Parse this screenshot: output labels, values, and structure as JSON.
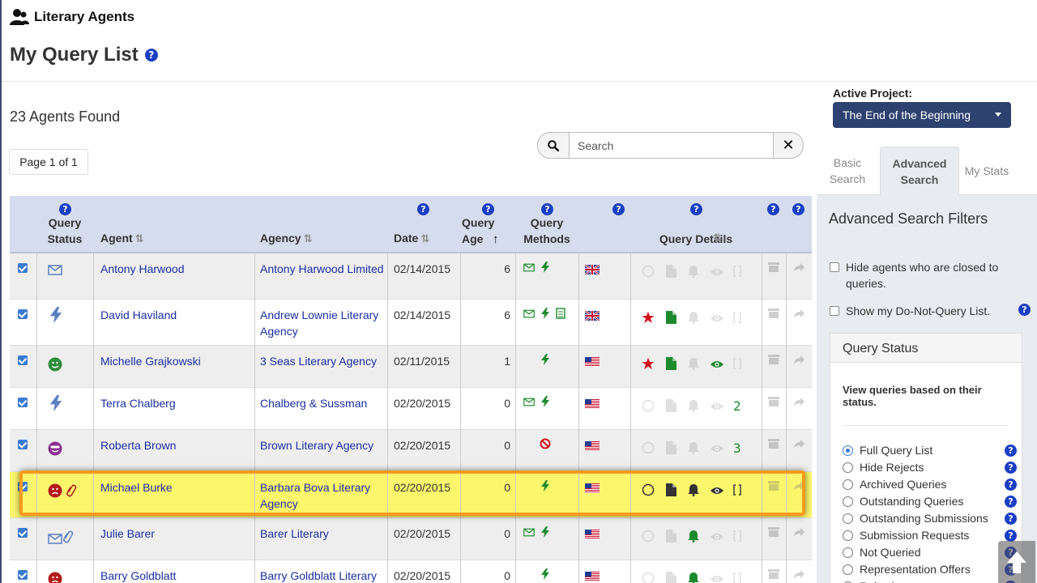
{
  "app": {
    "title": "Literary Agents"
  },
  "page": {
    "title": "My Query List",
    "results": "23 Agents Found",
    "pagination": "Page 1 of 1"
  },
  "search": {
    "placeholder": "Search"
  },
  "active_project": {
    "label": "Active Project:",
    "value": "The End of the Beginning"
  },
  "tabs": [
    {
      "label": "Basic Search",
      "active": false
    },
    {
      "label": "Advanced Search",
      "active": true
    },
    {
      "label": "My Stats",
      "active": false
    }
  ],
  "sidebar": {
    "title": "Advanced Search Filters",
    "checks": [
      {
        "label": "Hide agents who are closed to queries.",
        "checked": false
      },
      {
        "label": "Show my Do-Not-Query List.",
        "checked": false
      }
    ],
    "query_status": {
      "title": "Query Status",
      "description": "View queries based on their status.",
      "options": [
        {
          "label": "Full Query List",
          "selected": true
        },
        {
          "label": "Hide Rejects",
          "selected": false
        },
        {
          "label": "Archived Queries",
          "selected": false
        },
        {
          "label": "Outstanding Queries",
          "selected": false
        },
        {
          "label": "Outstanding Submissions",
          "selected": false
        },
        {
          "label": "Submission Requests",
          "selected": false
        },
        {
          "label": "Not Queried",
          "selected": false
        },
        {
          "label": "Representation Offers",
          "selected": false
        },
        {
          "label": "Rejections",
          "selected": false
        }
      ]
    }
  },
  "table": {
    "headers": {
      "query_status": "Query Status",
      "agent": "Agent",
      "agency": "Agency",
      "date": "Date",
      "query_age": "Query Age",
      "query_methods": "Query Methods",
      "query_details": "Query Details"
    },
    "rows": [
      {
        "agent": "Antony Harwood",
        "agency": "Antony Harwood Limited",
        "date": "02/14/2015",
        "age": "6",
        "status": "envelope-icon",
        "methods": [
          "email",
          "bolt"
        ],
        "flag": "uk",
        "details": {
          "star": false,
          "doc": false,
          "bell": false,
          "eye": false,
          "digit": ""
        }
      },
      {
        "agent": "David Haviland",
        "agency": "Andrew Lownie Literary Agency",
        "date": "02/14/2015",
        "age": "6",
        "status": "bolt-icon",
        "methods": [
          "email",
          "bolt",
          "form"
        ],
        "flag": "uk",
        "details": {
          "star": true,
          "doc": true,
          "bell": false,
          "eye": false,
          "digit": ""
        }
      },
      {
        "agent": "Michelle Grajkowski",
        "agency": "3 Seas Literary Agency",
        "date": "02/11/2015",
        "age": "1",
        "status": "smile-icon",
        "methods": [
          "bolt"
        ],
        "flag": "us",
        "details": {
          "star": true,
          "doc": true,
          "bell": false,
          "eye": true,
          "digit": ""
        }
      },
      {
        "agent": "Terra Chalberg",
        "agency": "Chalberg & Sussman",
        "date": "02/20/2015",
        "age": "0",
        "status": "bolt-icon",
        "methods": [
          "email",
          "bolt"
        ],
        "flag": "us",
        "details": {
          "star": false,
          "doc": false,
          "bell": false,
          "eye": false,
          "digit": "2"
        }
      },
      {
        "agent": "Roberta Brown",
        "agency": "Brown Literary Agency",
        "date": "02/20/2015",
        "age": "0",
        "status": "cool-icon",
        "methods": [
          "ban"
        ],
        "flag": "us",
        "details": {
          "star": false,
          "doc": false,
          "bell": false,
          "eye": false,
          "digit": "3"
        }
      },
      {
        "agent": "Michael Burke",
        "agency": "Barbara Bova Literary Agency",
        "date": "02/20/2015",
        "age": "0",
        "status": "frown-clip-icon",
        "methods": [
          "bolt"
        ],
        "flag": "us",
        "details": {
          "star": false,
          "doc": false,
          "bell": false,
          "eye": false,
          "digit": ""
        }
      },
      {
        "agent": "Julie Barer",
        "agency": "Barer Literary",
        "date": "02/20/2015",
        "age": "0",
        "status": "envelope-clip-icon",
        "methods": [
          "email",
          "bolt"
        ],
        "flag": "us",
        "details": {
          "star": false,
          "doc": false,
          "bell": true,
          "eye": false,
          "digit": ""
        }
      },
      {
        "agent": "Barry Goldblatt",
        "agency": "Barry Goldblatt Literary",
        "date": "02/20/2015",
        "age": "0",
        "status": "frown-icon",
        "methods": [
          "bolt"
        ],
        "flag": "us",
        "details": {
          "star": false,
          "doc": false,
          "bell": true,
          "eye": false,
          "digit": ""
        }
      }
    ]
  },
  "colors": {
    "nav": "#2e4270",
    "link": "#1a2ea3",
    "highlight": "#fbf66c",
    "outline": "#f59b1f",
    "green": "#1e8a2e",
    "red": "#d0141f"
  }
}
